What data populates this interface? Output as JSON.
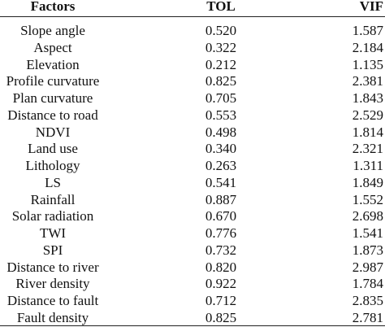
{
  "table": {
    "columns": [
      "Factors",
      "TOL",
      "VIF"
    ],
    "rows": [
      [
        "Slope angle",
        "0.520",
        "1.587"
      ],
      [
        "Aspect",
        "0.322",
        "2.184"
      ],
      [
        "Elevation",
        "0.212",
        "1.135"
      ],
      [
        "Profile curvature",
        "0.825",
        "2.381"
      ],
      [
        "Plan curvature",
        "0.705",
        "1.843"
      ],
      [
        "Distance to road",
        "0.553",
        "2.529"
      ],
      [
        "NDVI",
        "0.498",
        "1.814"
      ],
      [
        "Land use",
        "0.340",
        "2.321"
      ],
      [
        "Lithology",
        "0.263",
        "1.311"
      ],
      [
        "LS",
        "0.541",
        "1.849"
      ],
      [
        "Rainfall",
        "0.887",
        "1.552"
      ],
      [
        "Solar radiation",
        "0.670",
        "2.698"
      ],
      [
        "TWI",
        "0.776",
        "1.541"
      ],
      [
        "SPI",
        "0.732",
        "1.873"
      ],
      [
        "Distance to river",
        "0.820",
        "2.987"
      ],
      [
        "River density",
        "0.922",
        "1.784"
      ],
      [
        "Distance to fault",
        "0.712",
        "2.835"
      ],
      [
        "Fault density",
        "0.825",
        "2.781"
      ]
    ]
  }
}
